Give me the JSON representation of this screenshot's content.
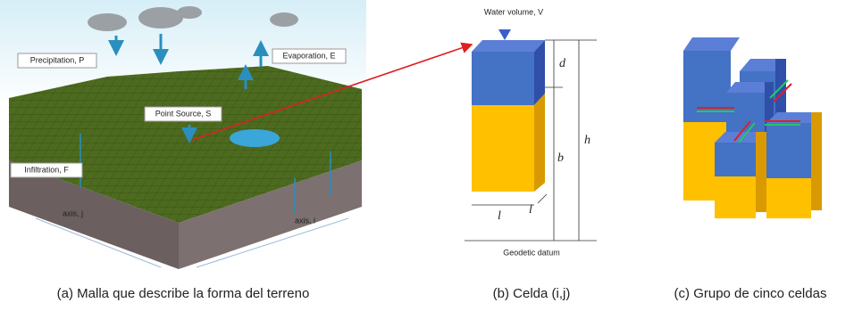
{
  "panel_a": {
    "labels": {
      "precipitation": "Precipitation, P",
      "evaporation": "Evaporation, E",
      "point_source": "Point Source, S",
      "infiltration": "Infiltration, F",
      "axis_j": "axis, j",
      "axis_i": "axis, i"
    },
    "caption": "(a) Malla que describe la forma del terreno"
  },
  "panel_b": {
    "labels": {
      "water_volume": "Water volume, V",
      "d": "d",
      "b": "b",
      "h": "h",
      "l_front": "l",
      "l_side": "l",
      "datum": "Geodetic datum"
    },
    "caption": "(b) Celda (i,j)"
  },
  "panel_c": {
    "caption": "(c) Grupo de cinco celdas"
  }
}
